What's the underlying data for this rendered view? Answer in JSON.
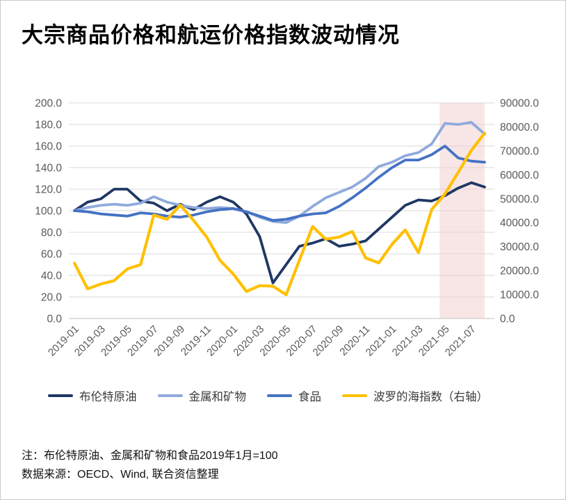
{
  "title": "大宗商品价格和航运价格指数波动情况",
  "notes": {
    "line1": "注：布伦特原油、金属和矿物和食品2019年1月=100",
    "line2": "数据来源：OECD、Wind, 联合资信整理"
  },
  "colors": {
    "grid": "#D9D9D9",
    "axis_line": "#BFBFBF",
    "axis_text": "#595959",
    "highlight_band": "#F0C8CA",
    "brent": "#1F3864",
    "metals": "#8FAADC",
    "food": "#4472C4",
    "baltic": "#FFC000"
  },
  "chart_data": {
    "type": "line",
    "title": "大宗商品价格和航运价格指数波动情况",
    "x": [
      "2019-01",
      "2019-02",
      "2019-03",
      "2019-04",
      "2019-05",
      "2019-06",
      "2019-07",
      "2019-08",
      "2019-09",
      "2019-10",
      "2019-11",
      "2019-12",
      "2020-01",
      "2020-02",
      "2020-03",
      "2020-04",
      "2020-05",
      "2020-06",
      "2020-07",
      "2020-08",
      "2020-09",
      "2020-10",
      "2020-11",
      "2020-12",
      "2021-01",
      "2021-02",
      "2021-03",
      "2021-04",
      "2021-05",
      "2021-06",
      "2021-07",
      "2021-08"
    ],
    "x_tick_labels": [
      "2019-01",
      "2019-03",
      "2019-05",
      "2019-07",
      "2019-09",
      "2019-11",
      "2020-01",
      "2020-03",
      "2020-05",
      "2020-07",
      "2020-09",
      "2020-11",
      "2021-01",
      "2021-03",
      "2021-05",
      "2021-07"
    ],
    "left_axis": {
      "min": 0,
      "max": 200,
      "step": 20,
      "tick_labels": [
        "200.0",
        "180.0",
        "160.0",
        "140.0",
        "120.0",
        "100.0",
        "80.0",
        "60.0",
        "40.0",
        "20.0",
        "0.0"
      ]
    },
    "right_axis": {
      "min": 0,
      "max": 90000,
      "step": 10000,
      "tick_labels": [
        "90000.0",
        "80000.0",
        "70000.0",
        "60000.0",
        "50000.0",
        "40000.0",
        "30000.0",
        "20000.0",
        "10000.0",
        "0.0"
      ]
    },
    "grid": true,
    "legend_position": "bottom",
    "highlight_band": {
      "from_index": 27.6,
      "to_index": 31,
      "color": "#F0C8CA",
      "opacity": 0.45
    },
    "series": [
      {
        "name": "布伦特原油",
        "axis": "left",
        "color": "#1F3864",
        "width": 3.8,
        "values": [
          100,
          108,
          111,
          120,
          120,
          109,
          107,
          100,
          106,
          101,
          108,
          113,
          108,
          97,
          76,
          33,
          50,
          67,
          70,
          74,
          67,
          69,
          72,
          83,
          94,
          105,
          110,
          109,
          114,
          121,
          126,
          122
        ]
      },
      {
        "name": "金属和矿物",
        "axis": "left",
        "color": "#8FAADC",
        "width": 3.8,
        "values": [
          100,
          103,
          105,
          106,
          105,
          107,
          113,
          108,
          105,
          103,
          102,
          103,
          102,
          99,
          94,
          90,
          89,
          95,
          104,
          112,
          117,
          122,
          130,
          141,
          145,
          151,
          154,
          162,
          181,
          180,
          182,
          171
        ]
      },
      {
        "name": "食品",
        "axis": "left",
        "color": "#4472C4",
        "width": 3.8,
        "values": [
          100,
          99,
          97,
          96,
          95,
          98,
          97,
          95,
          94,
          96,
          99,
          101,
          102,
          99,
          95,
          91,
          92,
          95,
          97,
          98,
          104,
          112,
          121,
          131,
          140,
          147,
          147,
          152,
          160,
          149,
          146,
          145
        ]
      },
      {
        "name": "波罗的海指数（右轴）",
        "axis": "right",
        "color": "#FFC000",
        "width": 4.2,
        "values": [
          23100,
          12400,
          14400,
          15800,
          20700,
          22500,
          43200,
          41400,
          47300,
          41000,
          34000,
          24300,
          18600,
          11300,
          13700,
          13500,
          9900,
          24300,
          38400,
          33100,
          34000,
          36300,
          25300,
          23200,
          31000,
          37000,
          27500,
          45500,
          52000,
          61000,
          70200,
          77400
        ]
      }
    ]
  }
}
